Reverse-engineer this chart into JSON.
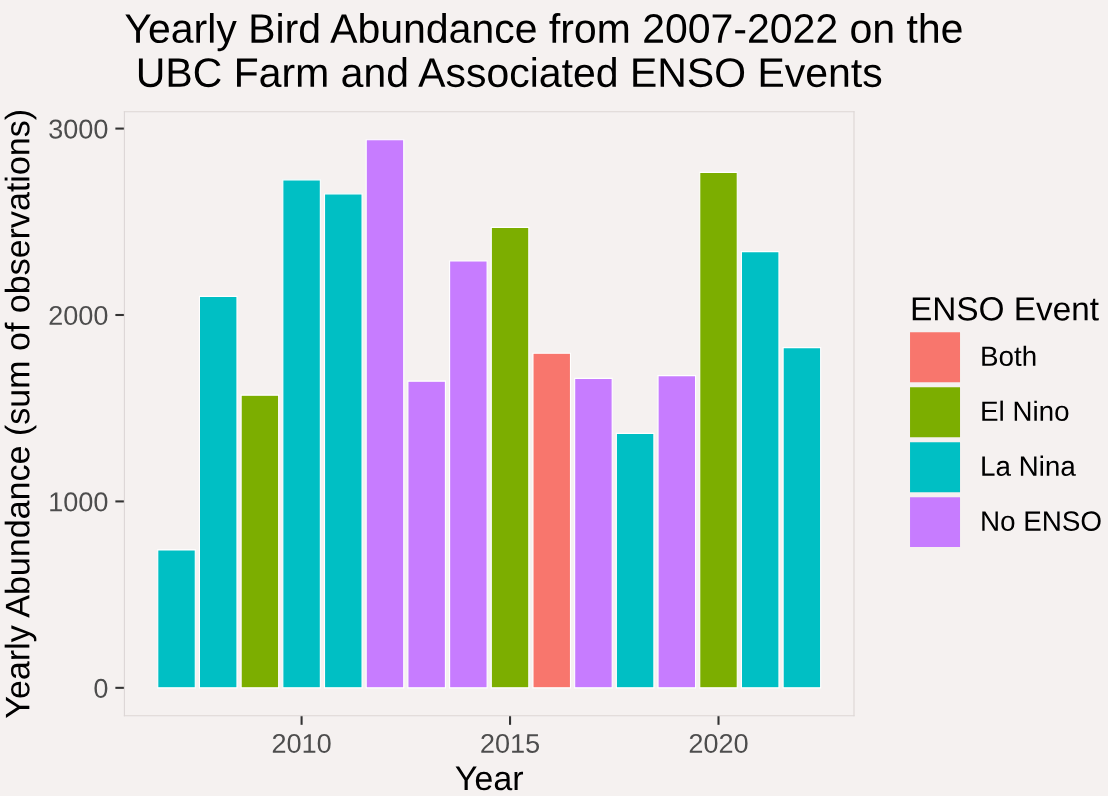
{
  "chart_data": {
    "type": "bar",
    "title": "Yearly Bird Abundance from 2007-2022 on the\n UBC Farm and Associated ENSO Events",
    "xlabel": "Year",
    "ylabel": "Yearly Abundance (sum of observations)",
    "legend_title": "ENSO Event",
    "x": [
      2007,
      2008,
      2009,
      2010,
      2011,
      2012,
      2013,
      2014,
      2015,
      2016,
      2017,
      2018,
      2019,
      2020,
      2021,
      2022
    ],
    "series": [
      {
        "name": "Both",
        "color": "#f8766d",
        "values": [
          null,
          null,
          null,
          null,
          null,
          null,
          null,
          null,
          null,
          1795,
          null,
          null,
          null,
          null,
          null,
          null
        ]
      },
      {
        "name": "El Nino",
        "color": "#7cae00",
        "values": [
          null,
          null,
          1570,
          null,
          null,
          null,
          null,
          null,
          2470,
          null,
          null,
          null,
          null,
          2765,
          null,
          null
        ]
      },
      {
        "name": "La Nina",
        "color": "#00bfc4",
        "values": [
          740,
          2100,
          null,
          2725,
          2650,
          null,
          null,
          null,
          null,
          null,
          null,
          1365,
          null,
          null,
          2340,
          1825
        ]
      },
      {
        "name": "No ENSO",
        "color": "#c77cff",
        "values": [
          null,
          null,
          null,
          null,
          null,
          2940,
          1645,
          2290,
          null,
          null,
          1660,
          null,
          1675,
          null,
          null,
          null
        ]
      }
    ],
    "xlim": [
      2005.75,
      2023.25
    ],
    "ylim": [
      -150,
      3090
    ],
    "xticks": [
      2010,
      2015,
      2020
    ],
    "yticks": [
      0,
      1000,
      2000,
      3000
    ],
    "grid": false,
    "legend": "right"
  }
}
